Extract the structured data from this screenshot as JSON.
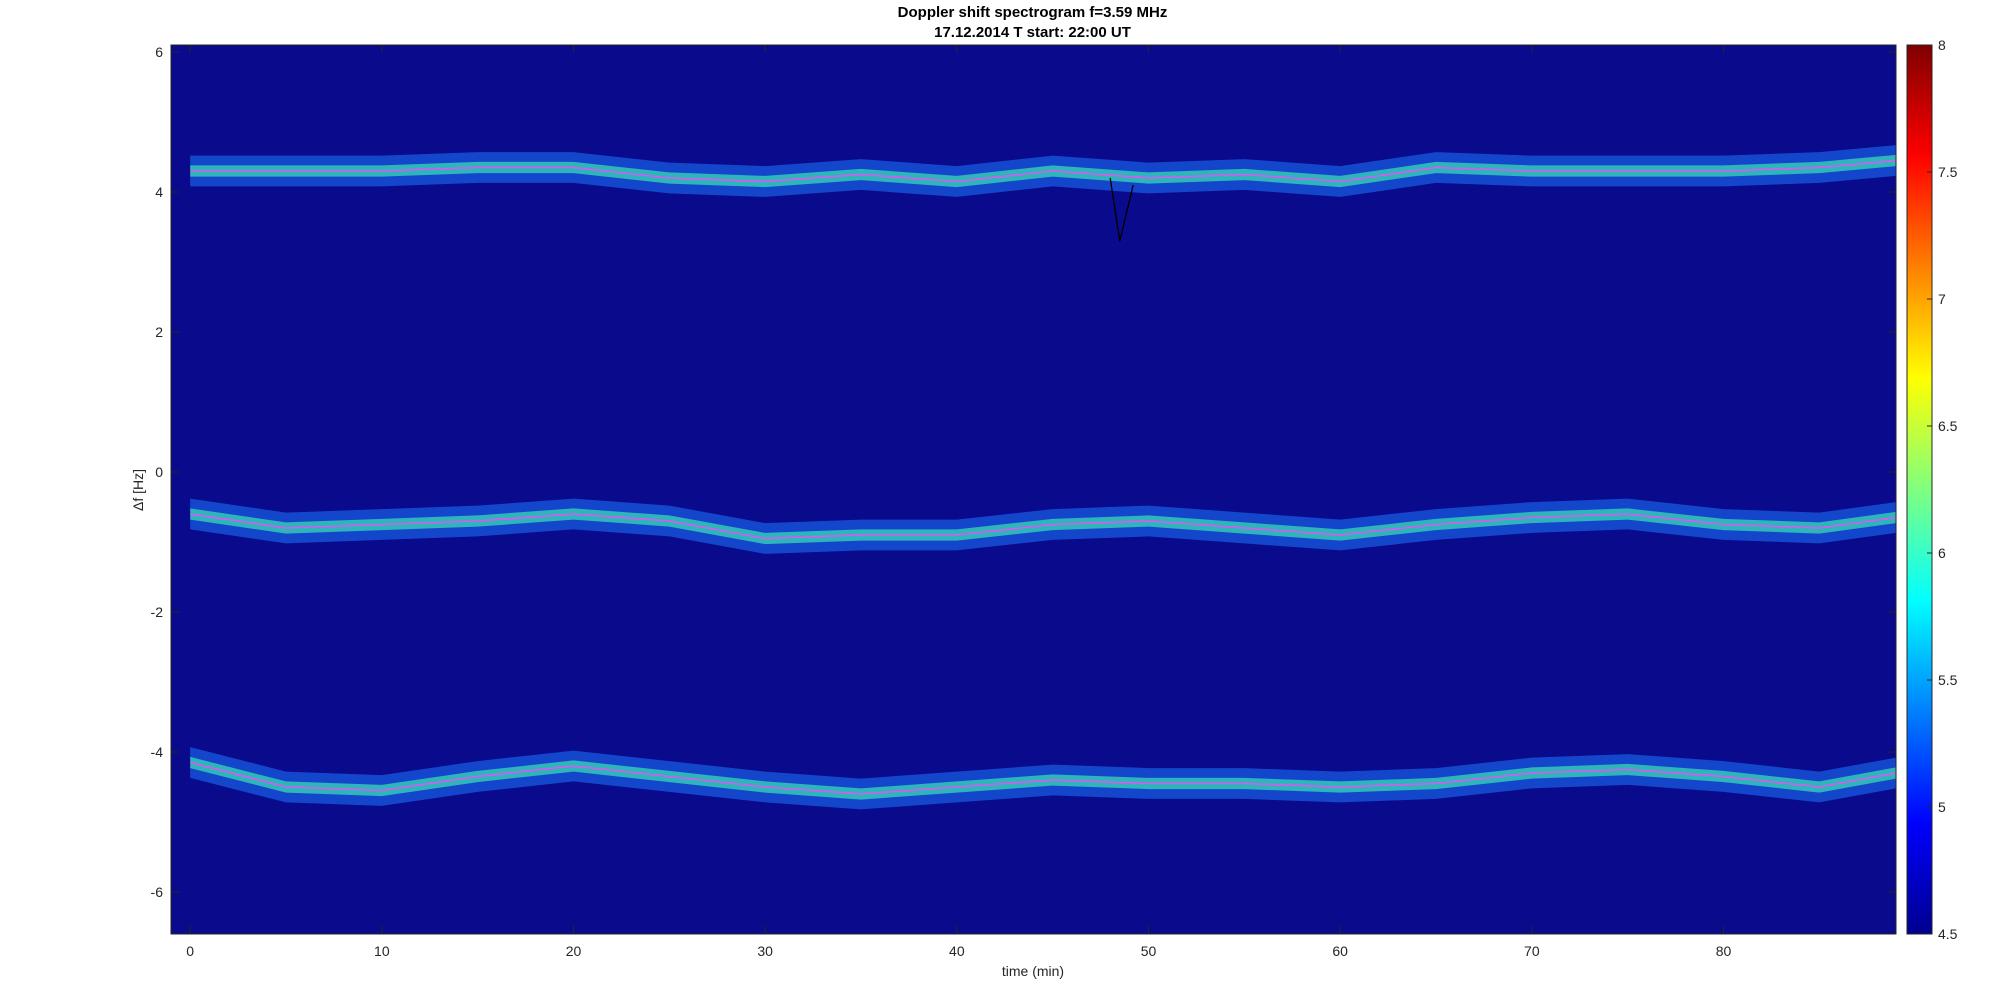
{
  "figure": {
    "title_line1": "Doppler shift spectrogram f=3.59 MHz",
    "title_line2": "17.12.2014   T start: 22:00 UT"
  },
  "chart_data": {
    "type": "heatmap",
    "title": "Doppler shift spectrogram f=3.59 MHz",
    "subtitle": "17.12.2014   T start: 22:00 UT",
    "xlabel": "time (min)",
    "ylabel": "Δf [Hz]",
    "xlim": [
      -1,
      89
    ],
    "ylim": [
      -6.6,
      6.1
    ],
    "xticks": [
      0,
      10,
      20,
      30,
      40,
      50,
      60,
      70,
      80
    ],
    "yticks": [
      -6,
      -4,
      -2,
      0,
      2,
      4,
      6
    ],
    "colormap": "jet",
    "colorbar": {
      "clim": [
        4.5,
        8
      ],
      "ticks": [
        4.5,
        5,
        5.5,
        6,
        6.5,
        7,
        7.5,
        8
      ]
    },
    "background_color": "#0a0a8c",
    "traces": [
      {
        "color": "#ff44ff",
        "x": [
          0,
          5,
          10,
          15,
          20,
          25,
          30,
          35,
          40,
          45,
          50,
          55,
          60,
          65,
          70,
          75,
          80,
          85,
          89
        ],
        "y": [
          4.3,
          4.3,
          4.3,
          4.35,
          4.35,
          4.2,
          4.15,
          4.25,
          4.15,
          4.3,
          4.2,
          4.25,
          4.15,
          4.35,
          4.3,
          4.3,
          4.3,
          4.35,
          4.45
        ]
      },
      {
        "color": "#ff44ff",
        "x": [
          0,
          5,
          10,
          15,
          20,
          25,
          30,
          35,
          40,
          45,
          50,
          55,
          60,
          65,
          70,
          75,
          80,
          85,
          89
        ],
        "y": [
          -0.6,
          -0.8,
          -0.75,
          -0.7,
          -0.6,
          -0.7,
          -0.95,
          -0.9,
          -0.9,
          -0.75,
          -0.7,
          -0.8,
          -0.9,
          -0.75,
          -0.65,
          -0.6,
          -0.75,
          -0.8,
          -0.65
        ]
      },
      {
        "color": "#ff44ff",
        "x": [
          0,
          5,
          10,
          15,
          20,
          25,
          30,
          35,
          40,
          45,
          50,
          55,
          60,
          65,
          70,
          75,
          80,
          85,
          89
        ],
        "y": [
          -4.15,
          -4.5,
          -4.55,
          -4.35,
          -4.2,
          -4.35,
          -4.5,
          -4.6,
          -4.5,
          -4.4,
          -4.45,
          -4.45,
          -4.5,
          -4.45,
          -4.3,
          -4.25,
          -4.35,
          -4.5,
          -4.3
        ]
      },
      {
        "color": "#000000",
        "x": [
          48,
          48.5,
          49.2
        ],
        "y": [
          4.2,
          3.3,
          4.1
        ]
      }
    ]
  }
}
